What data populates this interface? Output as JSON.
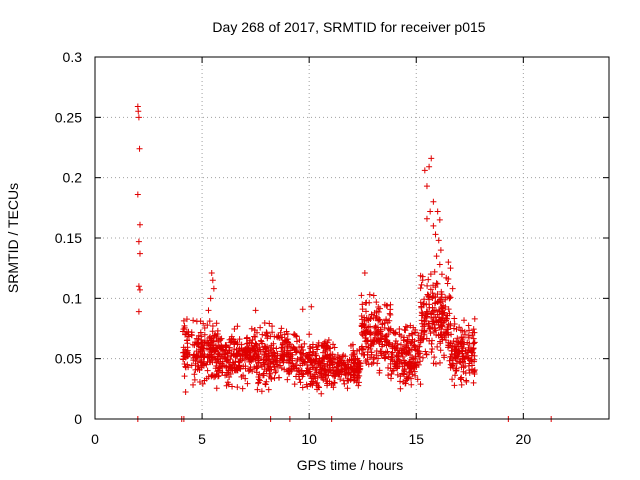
{
  "chart_data": {
    "type": "scatter",
    "title": "Day 268 of 2017, SRMTID for receiver p015",
    "xlabel": "GPS time / hours",
    "ylabel": "SRMTID / TECUs",
    "xlim": [
      0,
      24
    ],
    "ylim": [
      0,
      0.3
    ],
    "x_ticks": [
      0,
      5,
      10,
      15,
      20
    ],
    "y_ticks": [
      0,
      0.05,
      0.1,
      0.15,
      0.2,
      0.25,
      0.3
    ],
    "grid": true,
    "marker": "+",
    "series_color": "#e00000",
    "series": [
      {
        "name": "SRMTID",
        "points": [
          [
            2.0,
            0.259
          ],
          [
            2.02,
            0.255
          ],
          [
            2.05,
            0.25
          ],
          [
            2.08,
            0.224
          ],
          [
            2.0,
            0.186
          ],
          [
            2.1,
            0.161
          ],
          [
            2.05,
            0.147
          ],
          [
            2.1,
            0.137
          ],
          [
            2.05,
            0.11
          ],
          [
            2.1,
            0.107
          ],
          [
            2.05,
            0.089
          ],
          [
            2.0,
            0.0
          ],
          [
            4.05,
            0.0
          ],
          [
            4.15,
            0.0
          ],
          [
            8.2,
            0.0
          ],
          [
            9.1,
            0.0
          ],
          [
            11.05,
            0.0
          ],
          [
            19.3,
            0.0
          ],
          [
            21.3,
            0.0
          ],
          [
            5.45,
            0.121
          ],
          [
            5.5,
            0.115
          ],
          [
            5.55,
            0.108
          ],
          [
            5.4,
            0.1
          ],
          [
            5.3,
            0.09
          ],
          [
            7.5,
            0.09
          ],
          [
            9.7,
            0.091
          ],
          [
            10.1,
            0.093
          ],
          [
            12.6,
            0.121
          ],
          [
            15.7,
            0.216
          ],
          [
            15.6,
            0.209
          ],
          [
            15.4,
            0.206
          ],
          [
            15.5,
            0.193
          ],
          [
            15.8,
            0.18
          ],
          [
            15.65,
            0.172
          ],
          [
            15.5,
            0.166
          ],
          [
            16.0,
            0.172
          ],
          [
            16.1,
            0.165
          ],
          [
            15.8,
            0.16
          ],
          [
            15.9,
            0.153
          ],
          [
            16.05,
            0.148
          ],
          [
            16.15,
            0.14
          ],
          [
            15.95,
            0.135
          ],
          [
            16.1,
            0.128
          ],
          [
            16.2,
            0.12
          ],
          [
            16.0,
            0.112
          ],
          [
            16.5,
            0.13
          ],
          [
            16.6,
            0.125
          ],
          [
            16.4,
            0.117
          ],
          [
            16.7,
            0.108
          ],
          [
            16.55,
            0.1
          ],
          [
            15.3,
            0.118
          ]
        ]
      }
    ],
    "dense_bands": [
      {
        "x_range": [
          4.1,
          5.7
        ],
        "y_range": [
          0.02,
          0.09
        ],
        "count": 200
      },
      {
        "x_range": [
          5.7,
          7.4
        ],
        "y_range": [
          0.02,
          0.08
        ],
        "count": 220
      },
      {
        "x_range": [
          7.4,
          9.5
        ],
        "y_range": [
          0.02,
          0.085
        ],
        "count": 250
      },
      {
        "x_range": [
          9.5,
          11.2
        ],
        "y_range": [
          0.015,
          0.075
        ],
        "count": 220
      },
      {
        "x_range": [
          11.2,
          12.4
        ],
        "y_range": [
          0.02,
          0.065
        ],
        "count": 150
      },
      {
        "x_range": [
          12.4,
          13.8
        ],
        "y_range": [
          0.03,
          0.11
        ],
        "count": 180
      },
      {
        "x_range": [
          13.8,
          15.2
        ],
        "y_range": [
          0.02,
          0.085
        ],
        "count": 180
      },
      {
        "x_range": [
          15.2,
          16.6
        ],
        "y_range": [
          0.035,
          0.13
        ],
        "count": 200
      },
      {
        "x_range": [
          16.6,
          17.75
        ],
        "y_range": [
          0.02,
          0.09
        ],
        "count": 150
      }
    ]
  }
}
